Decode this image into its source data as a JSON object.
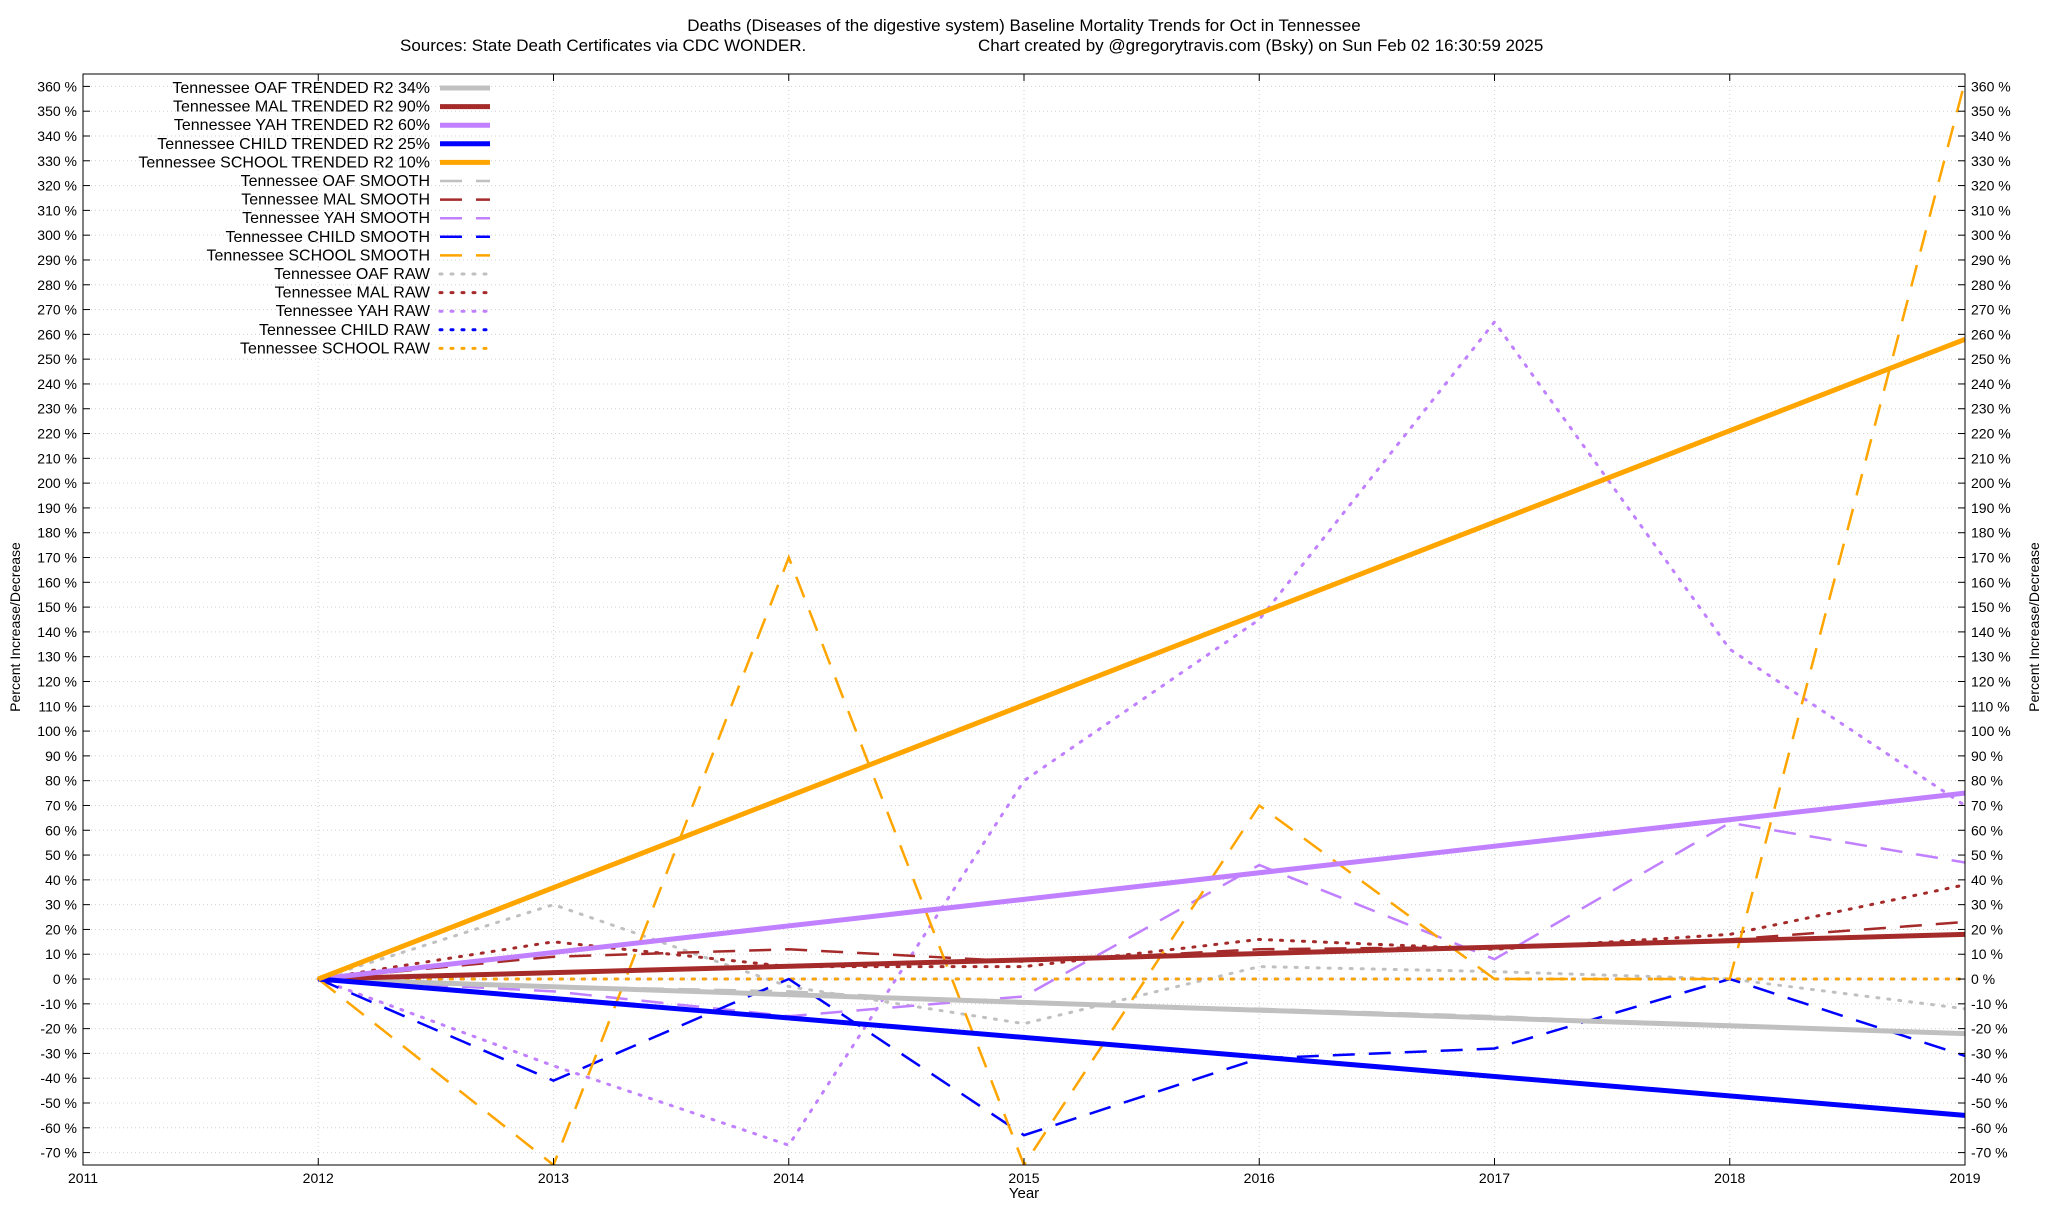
{
  "chart_data": {
    "type": "line",
    "title": "Deaths (Diseases of the digestive system)  Baseline Mortality Trends for Oct in Tennessee",
    "subtitle_left": "Sources: State Death Certificates via CDC WONDER.",
    "subtitle_right": "Chart created by @gregorytravis.com (Bsky) on Sun Feb 02 16:30:59 2025",
    "xlabel": "Year",
    "ylabel": "Percent Increase/Decrease",
    "xlim": [
      2011,
      2019
    ],
    "ylim": [
      -75,
      365
    ],
    "x_ticks": [
      2011,
      2012,
      2013,
      2014,
      2015,
      2016,
      2017,
      2018,
      2019
    ],
    "y_ticks": [
      -70,
      -60,
      -50,
      -40,
      -30,
      -20,
      -10,
      0,
      10,
      20,
      30,
      40,
      50,
      60,
      70,
      80,
      90,
      100,
      110,
      120,
      130,
      140,
      150,
      160,
      170,
      180,
      190,
      200,
      210,
      220,
      230,
      240,
      250,
      260,
      270,
      280,
      290,
      300,
      310,
      320,
      330,
      340,
      350,
      360
    ],
    "y_tick_suffix": " %",
    "grid": true,
    "legend_placement": "top-left",
    "series": [
      {
        "name": "Tennessee OAF TRENDED R2  34%",
        "style": "solid",
        "color": "#c0c0c0",
        "x": [
          2012,
          2019
        ],
        "y": [
          0,
          -22
        ]
      },
      {
        "name": "Tennessee MAL TRENDED R2  90%",
        "style": "solid",
        "color": "#a52a2a",
        "x": [
          2012,
          2019
        ],
        "y": [
          0,
          18
        ]
      },
      {
        "name": "Tennessee YAH TRENDED R2  60%",
        "style": "solid",
        "color": "#c080ff",
        "x": [
          2012,
          2019
        ],
        "y": [
          0,
          75
        ]
      },
      {
        "name": "Tennessee CHILD TRENDED R2  25%",
        "style": "solid",
        "color": "#0000ff",
        "x": [
          2012,
          2019
        ],
        "y": [
          0,
          -55
        ]
      },
      {
        "name": "Tennessee SCHOOL TRENDED R2  10%",
        "style": "solid",
        "color": "#ffa500",
        "x": [
          2012,
          2019
        ],
        "y": [
          0,
          258
        ]
      },
      {
        "name": "Tennessee OAF SMOOTH",
        "style": "dash",
        "color": "#c0c0c0",
        "x": [
          2012,
          2013,
          2014,
          2015,
          2016,
          2017,
          2018,
          2019
        ],
        "y": [
          0,
          -3,
          -5,
          -10,
          -12,
          -15,
          -19,
          -22
        ]
      },
      {
        "name": "Tennessee MAL SMOOTH",
        "style": "dash",
        "color": "#a52a2a",
        "x": [
          2012,
          2013,
          2014,
          2015,
          2016,
          2017,
          2018,
          2019
        ],
        "y": [
          0,
          9,
          12,
          7,
          12,
          13,
          16,
          23
        ]
      },
      {
        "name": "Tennessee YAH SMOOTH",
        "style": "dash",
        "color": "#c080ff",
        "x": [
          2012,
          2013,
          2014,
          2015,
          2016,
          2017,
          2018,
          2019
        ],
        "y": [
          0,
          -5,
          -15,
          -7,
          46,
          8,
          63,
          47
        ]
      },
      {
        "name": "Tennessee CHILD SMOOTH",
        "style": "dash",
        "color": "#0000ff",
        "x": [
          2012,
          2013,
          2014,
          2015,
          2016,
          2017,
          2018,
          2019
        ],
        "y": [
          0,
          -41,
          0,
          -63,
          -32,
          -28,
          0,
          -31
        ]
      },
      {
        "name": "Tennessee SCHOOL SMOOTH",
        "style": "dash",
        "color": "#ffa500",
        "x": [
          2012,
          2013,
          2014,
          2015,
          2016,
          2017,
          2018,
          2019
        ],
        "y": [
          0,
          -75,
          170,
          -75,
          70,
          0,
          0,
          362
        ]
      },
      {
        "name": "Tennessee OAF RAW",
        "style": "dot",
        "color": "#c0c0c0",
        "x": [
          2012,
          2013,
          2014,
          2015,
          2016,
          2017,
          2018,
          2019
        ],
        "y": [
          0,
          30,
          -3,
          -18,
          5,
          3,
          0,
          -12
        ]
      },
      {
        "name": "Tennessee MAL RAW",
        "style": "dot",
        "color": "#a52a2a",
        "x": [
          2012,
          2013,
          2014,
          2015,
          2016,
          2017,
          2018,
          2019
        ],
        "y": [
          0,
          15,
          5,
          5,
          16,
          12,
          18,
          38
        ]
      },
      {
        "name": "Tennessee YAH RAW",
        "style": "dot",
        "color": "#c080ff",
        "x": [
          2012,
          2013,
          2014,
          2015,
          2016,
          2017,
          2018,
          2019
        ],
        "y": [
          0,
          -35,
          -67,
          80,
          145,
          265,
          133,
          70
        ]
      },
      {
        "name": "Tennessee CHILD RAW",
        "style": "dot",
        "color": "#0000ff",
        "x": [
          2012,
          2013,
          2014,
          2015,
          2016,
          2017,
          2018,
          2019
        ],
        "y": [
          0,
          0,
          0,
          0,
          0,
          0,
          0,
          0
        ]
      },
      {
        "name": "Tennessee SCHOOL RAW",
        "style": "dot",
        "color": "#ffa500",
        "x": [
          2012,
          2013,
          2014,
          2015,
          2016,
          2017,
          2018,
          2019
        ],
        "y": [
          0,
          0,
          0,
          0,
          0,
          0,
          0,
          0
        ]
      }
    ]
  }
}
